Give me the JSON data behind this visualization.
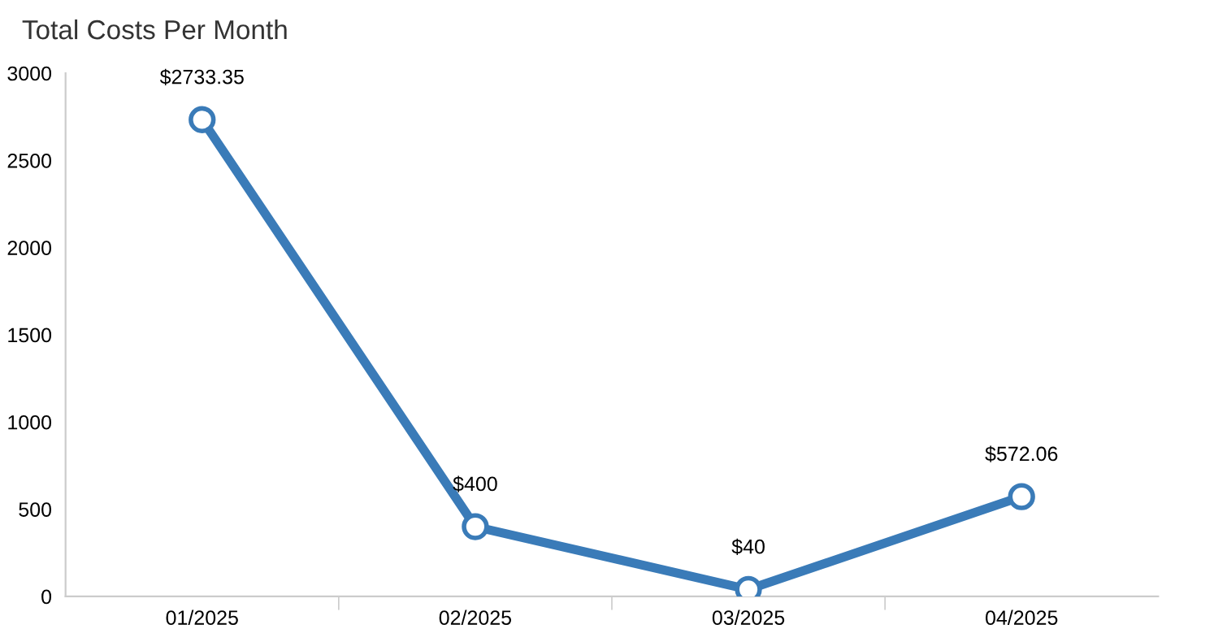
{
  "chart_data": {
    "type": "line",
    "title": "Total Costs Per Month",
    "categories": [
      "01/2025",
      "02/2025",
      "03/2025",
      "04/2025"
    ],
    "series": [
      {
        "color": "#3a7bb8",
        "values": [
          2733.35,
          400,
          40,
          572.06
        ],
        "value_labels": [
          "$2733.35",
          "$400",
          "$40",
          "$572.06"
        ]
      }
    ],
    "ylim": [
      0,
      3000
    ],
    "yticks": [
      0,
      500,
      1000,
      1500,
      2000,
      2500,
      3000
    ],
    "grid": false,
    "marker": "circle",
    "line_style": "solid"
  }
}
